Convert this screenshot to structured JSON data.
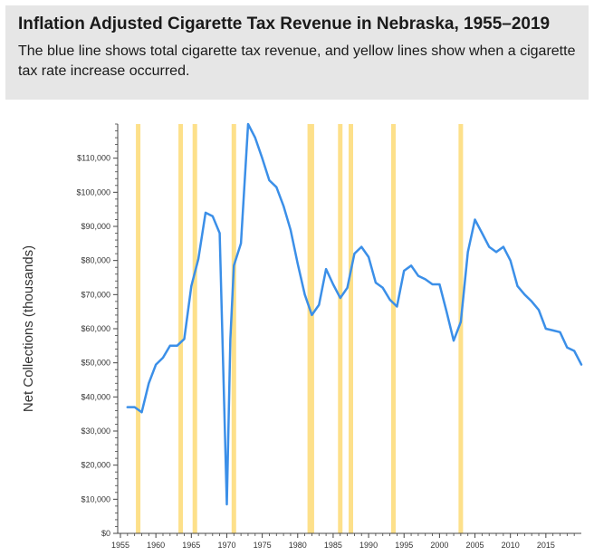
{
  "header": {
    "title": "Inflation Adjusted Cigarette Tax Revenue in Nebraska, 1955–2019",
    "subtitle": "The blue line shows total cigarette tax revenue, and yellow lines show when a cigarette tax rate increase occurred."
  },
  "colors": {
    "line": "#3b8fe8",
    "increase_bar": "#fde08a",
    "axis": "#444444"
  },
  "chart_data": {
    "type": "line",
    "title": "Inflation Adjusted Cigarette Tax Revenue in Nebraska, 1955–2019",
    "xlabel": "",
    "ylabel": "Net Collections (thousands)",
    "xlim": [
      1955,
      2020
    ],
    "ylim": [
      0,
      120000
    ],
    "grid": false,
    "x_ticks": [
      1955,
      1960,
      1965,
      1970,
      1975,
      1980,
      1985,
      1990,
      1995,
      2000,
      2005,
      2010,
      2015
    ],
    "x_tick_labels": [
      "1955",
      "1960",
      "1965",
      "1970",
      "1975",
      "1980",
      "1985",
      "1990",
      "1995",
      "2000",
      "2005",
      "2010",
      "2015"
    ],
    "y_ticks": [
      0,
      10000,
      20000,
      30000,
      40000,
      50000,
      60000,
      70000,
      80000,
      90000,
      100000,
      110000
    ],
    "y_tick_labels": [
      "$0",
      "$10,000",
      "$20,000",
      "$30,000",
      "$40,000",
      "$50,000",
      "$60,000",
      "$70,000",
      "$80,000",
      "$90,000",
      "$100,000",
      "$110,000"
    ],
    "series": [
      {
        "x": [
          1956,
          1957,
          1958,
          1959,
          1960,
          1961,
          1962,
          1963,
          1964,
          1965,
          1966,
          1967,
          1968,
          1969,
          1970,
          1970.5,
          1971,
          1972,
          1973,
          1974,
          1975,
          1976,
          1977,
          1978,
          1979,
          1980,
          1981,
          1982,
          1983,
          1984,
          1985,
          1986,
          1987,
          1988,
          1989,
          1990,
          1991,
          1992,
          1993,
          1994,
          1995,
          1996,
          1997,
          1998,
          1999,
          2000,
          2001,
          2002,
          2003,
          2004,
          2005,
          2006,
          2007,
          2008,
          2009,
          2010,
          2011,
          2012,
          2013,
          2014,
          2015,
          2016,
          2017,
          2018,
          2019,
          2020
        ],
        "values": [
          37000,
          37000,
          35500,
          44000,
          49500,
          51500,
          55000,
          55000,
          57000,
          72500,
          80500,
          94000,
          93000,
          88000,
          8500,
          57000,
          78500,
          85000,
          120000,
          116000,
          110000,
          103500,
          101500,
          96000,
          89000,
          79000,
          70000,
          64000,
          67000,
          77500,
          73000,
          69000,
          72000,
          82000,
          84000,
          81000,
          73500,
          72000,
          68500,
          66500,
          77000,
          78500,
          75500,
          74500,
          73000,
          73000,
          65000,
          56500,
          62000,
          82500,
          92000,
          88000,
          84000,
          82500,
          84000,
          80000,
          72500,
          70000,
          68000,
          65500,
          60000,
          59500,
          59000,
          54500,
          53500,
          49500
        ]
      }
    ],
    "tax_increase_years": [
      1957.5,
      1963.5,
      1965.5,
      1971,
      1981.7,
      1982,
      1986,
      1987.5,
      1993.5,
      2003
    ]
  }
}
